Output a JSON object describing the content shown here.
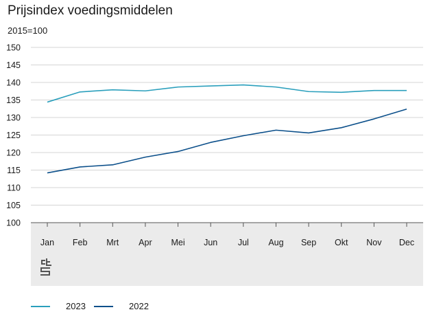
{
  "chart_data": {
    "type": "line",
    "title": "Prijsindex voedingsmiddelen",
    "ylabel": "2015=100",
    "xlabel": "",
    "ylim": [
      100,
      150
    ],
    "yticks": [
      100,
      105,
      110,
      115,
      120,
      125,
      130,
      135,
      140,
      145,
      150
    ],
    "categories": [
      "Jan",
      "Feb",
      "Mrt",
      "Apr",
      "Mei",
      "Jun",
      "Jul",
      "Aug",
      "Sep",
      "Okt",
      "Nov",
      "Dec"
    ],
    "grid": true,
    "legend_position": "bottom-left",
    "series": [
      {
        "name": "2023",
        "color": "#2a9fbc",
        "values": [
          134.4,
          137.3,
          137.9,
          137.6,
          138.7,
          139.0,
          139.3,
          138.7,
          137.4,
          137.2,
          137.7,
          137.7
        ]
      },
      {
        "name": "2022",
        "color": "#0b4f8a",
        "values": [
          114.2,
          115.9,
          116.5,
          118.7,
          120.3,
          122.9,
          124.8,
          126.4,
          125.6,
          127.1,
          129.6,
          132.4
        ]
      }
    ]
  },
  "logo": {
    "text": "cbs"
  }
}
